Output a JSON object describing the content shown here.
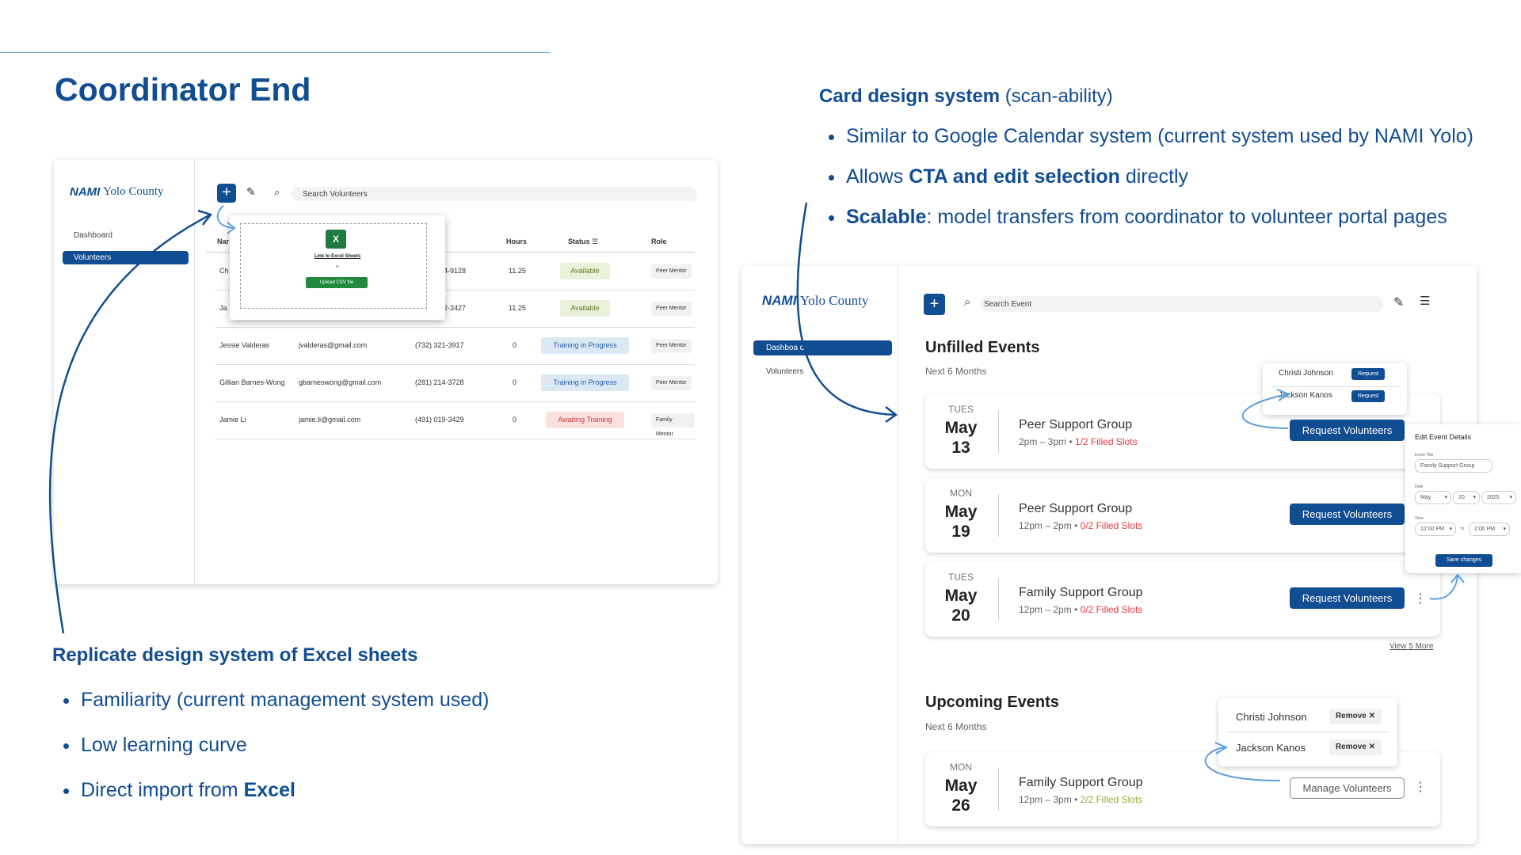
{
  "slide": {
    "title": "Coordinator End",
    "left_heading": "Replicate design system of Excel sheets",
    "left_bullets": [
      {
        "text": "Familiarity (current management system used)"
      },
      {
        "text": "Low learning curve"
      },
      {
        "pre": "Direct import from ",
        "bold": "Excel"
      }
    ],
    "right_heading_bold": "Card design system",
    "right_heading_rest": " (scan-ability)",
    "right_bullets": [
      {
        "text": "Similar to Google Calendar system (current system used by NAMI Yolo)"
      },
      {
        "pre": "Allows ",
        "bold": "CTA and edit selection",
        "post": " directly"
      },
      {
        "bold": "Scalable",
        "post": ": model transfers from coordinator to volunteer portal pages"
      }
    ]
  },
  "brand": {
    "mark": "NAMI",
    "name": "Yolo County"
  },
  "volunteers_panel": {
    "nav": {
      "dashboard": "Dashboard",
      "volunteers": "Volunteers"
    },
    "search_placeholder": "Search Volunteers",
    "columns": {
      "name": "Nar",
      "hours": "Hours",
      "status": "Status",
      "role": "Role"
    },
    "rows": [
      {
        "name": "Ch",
        "email": "",
        "phone": "4-9128",
        "hours": "11.25",
        "status": "Available",
        "role": "Peer Mentor"
      },
      {
        "name": "Ja",
        "email": "",
        "phone": "2-3427",
        "hours": "11.25",
        "status": "Available",
        "role": "Peer Mentor"
      },
      {
        "name": "Jessie Valderas",
        "email": "jvalderas@gmail.com",
        "phone": "(732) 321-3917",
        "hours": "0",
        "status": "Training in Progress",
        "role": "Peer Mentor"
      },
      {
        "name": "Gillian Barnes-Wong",
        "email": "gbarneswong@gmail.com",
        "phone": "(281) 214-3728",
        "hours": "0",
        "status": "Training in Progress",
        "role": "Peer Mentor"
      },
      {
        "name": "Jamie Li",
        "email": "jamie.li@gmail.com",
        "phone": "(491) 019-3429",
        "hours": "0",
        "status": "Awaiting Training",
        "role": "Family Mentor"
      }
    ],
    "import_modal": {
      "link_text": "Link to Excel Sheets",
      "or_text": "or",
      "upload_label": "Upload CSV file"
    }
  },
  "events_panel": {
    "nav": {
      "dashboard": "Dashboa d",
      "volunteers": "Volunteers"
    },
    "search_placeholder": "Search Event",
    "unfilled": {
      "title": "Unfilled Events",
      "subtitle": "Next 6 Months",
      "events": [
        {
          "dow": "TUES",
          "month": "May",
          "day": "13",
          "name": "Peer Support Group",
          "time": "2pm – 3pm",
          "slots": "1/2 Filled Slots",
          "button": "Request Volunteers"
        },
        {
          "dow": "MON",
          "month": "May",
          "day": "19",
          "name": "Peer Support Group",
          "time": "12pm – 2pm",
          "slots": "0/2 Filled Slots",
          "button": "Request Volunteers"
        },
        {
          "dow": "TUES",
          "month": "May",
          "day": "20",
          "name": "Family Support Group",
          "time": "12pm – 2pm",
          "slots": "0/2 Filled Slots",
          "button": "Request Volunteers"
        }
      ],
      "view_more": "View 5 More"
    },
    "request_popup": {
      "people": [
        {
          "name": "Christi Johnson",
          "action": "Request"
        },
        {
          "name": "Jackson Kanos",
          "action": "Request"
        }
      ]
    },
    "edit_popup": {
      "title": "Edit Event Details",
      "event_title_label": "Event Title",
      "event_title_value": "Family Support Group",
      "date_label": "Date",
      "month": "May",
      "day": "20",
      "year": "2025",
      "time_label": "Time",
      "time_from": "12:00 PM",
      "to_text": "to",
      "time_to": "2:00 PM",
      "save": "Save changes"
    },
    "upcoming": {
      "title": "Upcoming Events",
      "subtitle": "Next 6 Months",
      "events": [
        {
          "dow": "MON",
          "month": "May",
          "day": "26",
          "name": "Family Support Group",
          "time": "12pm – 3pm",
          "slots": "2/2 Filled Slots",
          "button": "Manage Volunteers"
        }
      ]
    },
    "manage_popup": {
      "people": [
        {
          "name": "Christi Johnson",
          "action": "Remove"
        },
        {
          "name": "Jackson Kanos",
          "action": "Remove"
        }
      ]
    }
  },
  "colors": {
    "brand_blue": "#114d92",
    "slot_red": "#e03b3b",
    "slot_green": "#8db13b"
  }
}
